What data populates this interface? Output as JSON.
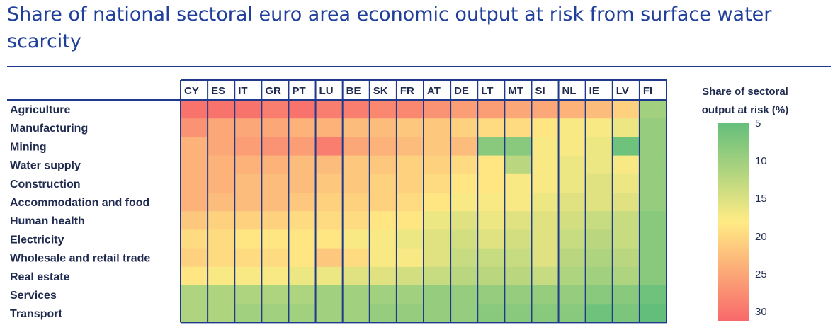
{
  "title": "Share of national sectoral euro area economic output at risk from surface water scarcity",
  "chart_data": {
    "type": "heatmap",
    "title": "Share of national sectoral euro area economic output at risk from surface water scarcity",
    "columns": [
      "CY",
      "ES",
      "IT",
      "GR",
      "PT",
      "LU",
      "BE",
      "SK",
      "FR",
      "AT",
      "DE",
      "LT",
      "MT",
      "SI",
      "NL",
      "IE",
      "LV",
      "FI"
    ],
    "rows": [
      "Agriculture",
      "Manufacturing",
      "Mining",
      "Water supply",
      "Construction",
      "Accommodation and food",
      "Human health",
      "Electricity",
      "Wholesale and retail trade",
      "Real estate",
      "Services",
      "Transport"
    ],
    "values": [
      [
        29,
        29,
        29,
        28,
        29,
        28,
        28,
        27,
        27,
        26,
        25,
        25,
        24,
        24,
        23,
        22,
        20,
        10
      ],
      [
        26,
        24,
        24,
        24,
        23,
        23,
        22,
        22,
        21,
        21,
        20,
        19,
        19,
        18,
        17,
        17,
        16,
        9
      ],
      [
        23,
        24,
        25,
        26,
        25,
        28,
        24,
        23,
        22,
        21,
        22,
        8,
        8,
        17,
        17,
        16,
        6,
        9
      ],
      [
        23,
        23,
        23,
        23,
        22,
        22,
        21,
        21,
        20,
        20,
        19,
        18,
        12,
        17,
        16,
        16,
        17,
        9
      ],
      [
        23,
        23,
        22,
        22,
        22,
        21,
        21,
        20,
        20,
        19,
        18,
        18,
        17,
        17,
        16,
        15,
        16,
        9
      ],
      [
        23,
        22,
        22,
        22,
        21,
        20,
        20,
        20,
        19,
        18,
        17,
        17,
        17,
        16,
        15,
        15,
        15,
        9
      ],
      [
        21,
        20,
        20,
        20,
        19,
        19,
        19,
        18,
        18,
        16,
        15,
        16,
        15,
        15,
        14,
        13,
        13,
        8
      ],
      [
        19,
        19,
        18,
        18,
        18,
        18,
        17,
        17,
        16,
        15,
        14,
        15,
        14,
        15,
        13,
        12,
        13,
        8
      ],
      [
        20,
        19,
        19,
        19,
        18,
        21,
        19,
        17,
        17,
        15,
        13,
        13,
        13,
        15,
        12,
        11,
        12,
        8
      ],
      [
        18,
        17,
        17,
        17,
        16,
        16,
        15,
        15,
        14,
        13,
        12,
        12,
        12,
        13,
        11,
        10,
        11,
        8
      ],
      [
        11,
        11,
        11,
        11,
        11,
        10,
        10,
        10,
        10,
        9,
        9,
        9,
        9,
        9,
        9,
        8,
        8,
        6
      ],
      [
        11,
        11,
        10,
        10,
        10,
        10,
        10,
        9,
        9,
        9,
        9,
        8,
        8,
        8,
        8,
        6,
        7,
        5
      ]
    ],
    "legend": {
      "title": "Share of sectoral output at risk (%)",
      "ticks": [
        "5",
        "10",
        "15",
        "20",
        "25",
        "30"
      ],
      "min": 5,
      "max": 30,
      "colors": {
        "low": "#63be7b",
        "mid": "#ffeb84",
        "high": "#f8696b"
      }
    }
  }
}
